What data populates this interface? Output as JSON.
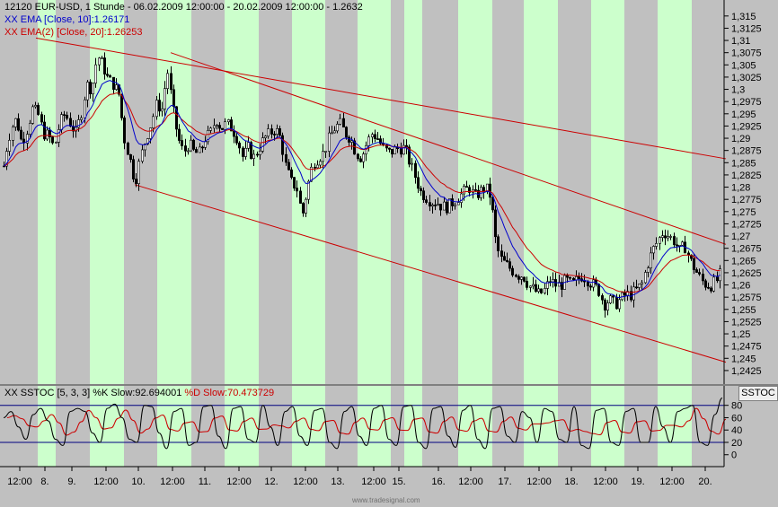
{
  "header": {
    "title": "12120  EUR-USD, 1 Stunde - 06.02.2009 12:00:00 - 20.02.2009 12:00:00 - 1.2632",
    "ema10": "EMA [Close, 10]:1.26171",
    "ema20": "EMA(2) [Close, 20]:1.26253",
    "stoc_name": "SSTOC [5, 3, 3]",
    "stoc_k": "%K Slow:92.694001",
    "stoc_d": "%D Slow:70.473729"
  },
  "stoc_badge": "SSTOC",
  "credit": "www.tradesignal.com",
  "colors": {
    "band": "#ccffcc",
    "bg": "#c0c0c0",
    "up": "#000000",
    "ema10": "#0000cc",
    "ema20": "#cc0000",
    "trend": "#cc0000",
    "level": "#000080"
  },
  "chart_data": {
    "type": "candlestick",
    "price_ticks": [
      "1,315",
      "1,3125",
      "1,31",
      "1,3075",
      "1,305",
      "1,3025",
      "1,3",
      "1,2975",
      "1,295",
      "1,2925",
      "1,29",
      "1,2875",
      "1,285",
      "1,2825",
      "1,28",
      "1,2775",
      "1,275",
      "1,2725",
      "1,27",
      "1,2675",
      "1,265",
      "1,2625",
      "1,26",
      "1,2575",
      "1,255",
      "1,2525",
      "1,25",
      "1,2475",
      "1,245",
      "1,2425"
    ],
    "price_range": [
      1.2412,
      1.3168
    ],
    "stoc_ticks": [
      "80",
      "60",
      "40",
      "20",
      "0"
    ],
    "stoc_range": [
      -12,
      97
    ],
    "stoc_levels": [
      80,
      20
    ],
    "x_labels": [
      "12:00",
      "8.",
      "9.",
      "12:00",
      "10.",
      "12:00",
      "11.",
      "12:00",
      "12.",
      "12:00",
      "13.",
      "12:00",
      "15.",
      "16.",
      "12:00",
      "17.",
      "12:00",
      "18.",
      "12:00",
      "19.",
      "12:00",
      "20."
    ],
    "anchors": [
      [
        0,
        1.279
      ],
      [
        6,
        1.287
      ],
      [
        12,
        1.292
      ],
      [
        18,
        1.294
      ],
      [
        24,
        1.289
      ],
      [
        30,
        1.292
      ],
      [
        36,
        1.296
      ],
      [
        42,
        1.295
      ],
      [
        48,
        1.291
      ],
      [
        54,
        1.2905
      ],
      [
        60,
        1.288
      ],
      [
        66,
        1.293
      ],
      [
        72,
        1.295
      ],
      [
        78,
        1.293
      ],
      [
        84,
        1.291
      ],
      [
        90,
        1.295
      ],
      [
        96,
        1.301
      ],
      [
        102,
        1.3
      ],
      [
        108,
        1.307
      ],
      [
        114,
        1.305
      ],
      [
        120,
        1.302
      ],
      [
        126,
        1.301
      ],
      [
        132,
        1.299
      ],
      [
        138,
        1.29
      ],
      [
        144,
        1.286
      ],
      [
        150,
        1.281
      ],
      [
        156,
        1.286
      ],
      [
        162,
        1.29
      ],
      [
        168,
        1.293
      ],
      [
        174,
        1.297
      ],
      [
        180,
        1.296
      ],
      [
        186,
        1.304
      ],
      [
        192,
        1.296
      ],
      [
        198,
        1.29
      ],
      [
        204,
        1.287
      ],
      [
        210,
        1.289
      ],
      [
        216,
        1.287
      ],
      [
        222,
        1.287
      ],
      [
        228,
        1.29
      ],
      [
        234,
        1.291
      ],
      [
        240,
        1.294
      ],
      [
        246,
        1.292
      ],
      [
        252,
        1.293
      ],
      [
        258,
        1.292
      ],
      [
        264,
        1.29
      ],
      [
        270,
        1.286
      ],
      [
        276,
        1.288
      ],
      [
        282,
        1.286
      ],
      [
        288,
        1.288
      ],
      [
        294,
        1.29
      ],
      [
        300,
        1.291
      ],
      [
        306,
        1.292
      ],
      [
        312,
        1.29
      ],
      [
        318,
        1.284
      ],
      [
        324,
        1.281
      ],
      [
        330,
        1.28
      ],
      [
        336,
        1.274
      ],
      [
        342,
        1.28
      ],
      [
        348,
        1.285
      ],
      [
        354,
        1.286
      ],
      [
        360,
        1.287
      ],
      [
        366,
        1.29
      ],
      [
        372,
        1.292
      ],
      [
        378,
        1.293
      ],
      [
        384,
        1.291
      ],
      [
        390,
        1.29
      ],
      [
        396,
        1.287
      ],
      [
        402,
        1.286
      ],
      [
        408,
        1.289
      ],
      [
        414,
        1.291
      ],
      [
        420,
        1.29
      ],
      [
        426,
        1.288
      ],
      [
        432,
        1.287
      ],
      [
        438,
        1.2875
      ],
      [
        444,
        1.288
      ],
      [
        450,
        1.288
      ],
      [
        456,
        1.285
      ],
      [
        462,
        1.282
      ],
      [
        468,
        1.279
      ],
      [
        474,
        1.278
      ],
      [
        480,
        1.277
      ],
      [
        486,
        1.277
      ],
      [
        492,
        1.276
      ],
      [
        498,
        1.276
      ],
      [
        504,
        1.277
      ],
      [
        510,
        1.278
      ],
      [
        516,
        1.279
      ],
      [
        522,
        1.28
      ],
      [
        528,
        1.278
      ],
      [
        534,
        1.279
      ],
      [
        540,
        1.28
      ],
      [
        546,
        1.278
      ],
      [
        552,
        1.268
      ],
      [
        558,
        1.265
      ],
      [
        564,
        1.264
      ],
      [
        570,
        1.263
      ],
      [
        576,
        1.262
      ],
      [
        582,
        1.262
      ],
      [
        588,
        1.26
      ],
      [
        594,
        1.259
      ],
      [
        600,
        1.258
      ],
      [
        606,
        1.259
      ],
      [
        612,
        1.261
      ],
      [
        618,
        1.26
      ],
      [
        624,
        1.26
      ],
      [
        630,
        1.261
      ],
      [
        636,
        1.26
      ],
      [
        642,
        1.261
      ],
      [
        648,
        1.262
      ],
      [
        654,
        1.261
      ],
      [
        660,
        1.26
      ],
      [
        666,
        1.259
      ],
      [
        672,
        1.256
      ],
      [
        678,
        1.257
      ],
      [
        684,
        1.256
      ],
      [
        690,
        1.257
      ],
      [
        696,
        1.258
      ],
      [
        702,
        1.258
      ],
      [
        708,
        1.259
      ],
      [
        714,
        1.26
      ],
      [
        720,
        1.264
      ],
      [
        726,
        1.267
      ],
      [
        732,
        1.269
      ],
      [
        738,
        1.271
      ],
      [
        744,
        1.27
      ],
      [
        750,
        1.269
      ],
      [
        756,
        1.267
      ],
      [
        762,
        1.268
      ],
      [
        768,
        1.265
      ],
      [
        774,
        1.263
      ],
      [
        780,
        1.261
      ],
      [
        786,
        1.26
      ],
      [
        792,
        1.26
      ],
      [
        798,
        1.261
      ],
      [
        804,
        1.2632
      ]
    ],
    "trend_lines": [
      [
        [
          40,
          1.3105
        ],
        [
          808,
          1.2858
        ]
      ],
      [
        [
          190,
          1.3075
        ],
        [
          808,
          1.2683
        ]
      ],
      [
        [
          150,
          1.2805
        ],
        [
          808,
          1.2442
        ]
      ]
    ],
    "stoc_k": [
      60,
      70,
      45,
      25,
      65,
      75,
      55,
      25,
      15,
      70,
      75,
      70,
      35,
      20,
      75,
      82,
      60,
      25,
      20,
      80,
      78,
      35,
      10,
      70,
      75,
      15,
      20,
      78,
      80,
      30,
      10,
      75,
      78,
      25,
      20,
      80,
      45,
      15,
      70,
      78,
      30,
      15,
      72,
      75,
      20,
      10,
      70,
      78,
      30,
      15,
      75,
      80,
      25,
      15,
      78,
      80,
      20,
      10,
      75,
      78,
      30,
      12,
      72,
      80,
      25,
      10,
      75,
      78,
      30,
      20,
      70,
      60,
      20,
      75,
      70,
      25,
      20,
      78,
      15,
      10,
      72,
      75,
      20,
      15,
      70,
      75,
      20,
      20,
      78,
      45,
      20,
      70,
      75,
      80,
      20,
      15,
      65,
      92
    ]
  }
}
